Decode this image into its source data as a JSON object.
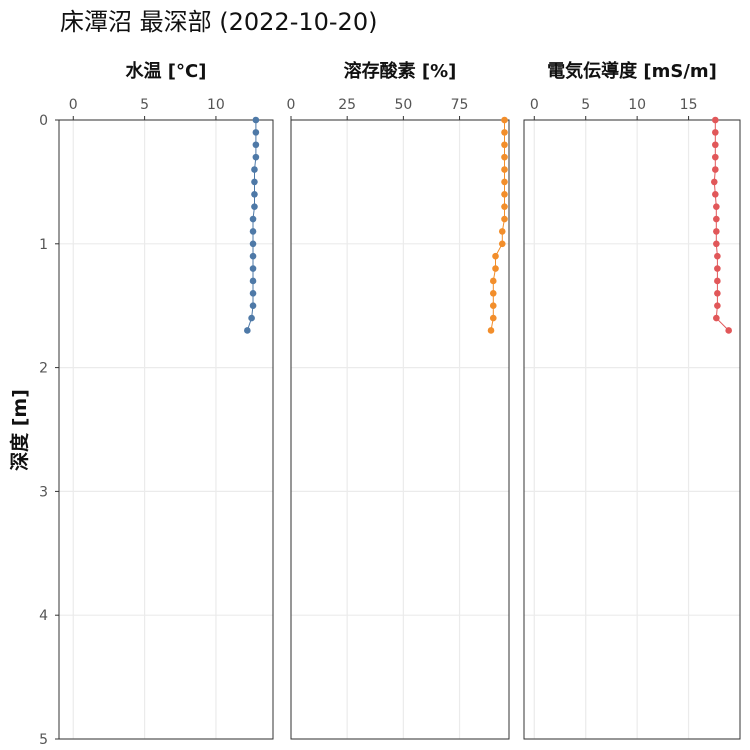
{
  "title": "床潭沼 最深部 (2022-10-20)",
  "chart_data": {
    "type": "scatter",
    "title": "床潭沼 最深部 (2022-10-20)",
    "ylabel": "深度 [m]",
    "y_reversed": true,
    "ylim": [
      0,
      5
    ],
    "yticks": [
      0,
      1,
      2,
      3,
      4,
      5
    ],
    "depth": [
      0.0,
      0.1,
      0.2,
      0.3,
      0.4,
      0.5,
      0.6,
      0.7,
      0.8,
      0.9,
      1.0,
      1.1,
      1.2,
      1.3,
      1.4,
      1.5,
      1.6,
      1.7
    ],
    "facets": [
      {
        "label": "水温 [°C]",
        "color": "#4e79a7",
        "xlim": [
          -1,
          14
        ],
        "xticks": [
          0,
          5,
          10
        ],
        "values": [
          12.8,
          12.8,
          12.8,
          12.8,
          12.7,
          12.7,
          12.7,
          12.7,
          12.6,
          12.6,
          12.6,
          12.6,
          12.6,
          12.6,
          12.6,
          12.6,
          12.5,
          12.2
        ]
      },
      {
        "label": "溶存酸素 [%]",
        "color": "#f28e2b",
        "xlim": [
          0,
          97
        ],
        "xticks": [
          0,
          25,
          50,
          75
        ],
        "values": [
          95,
          95,
          95,
          95,
          95,
          95,
          95,
          95,
          95,
          94,
          94,
          91,
          91,
          90,
          90,
          90,
          90,
          89
        ]
      },
      {
        "label": "電気伝導度 [mS/m]",
        "color": "#e15759",
        "xlim": [
          -1,
          20
        ],
        "xticks": [
          0,
          5,
          10,
          15
        ],
        "values": [
          17.6,
          17.6,
          17.6,
          17.6,
          17.6,
          17.5,
          17.6,
          17.7,
          17.7,
          17.7,
          17.7,
          17.8,
          17.8,
          17.8,
          17.8,
          17.8,
          17.7,
          18.9
        ]
      }
    ]
  }
}
